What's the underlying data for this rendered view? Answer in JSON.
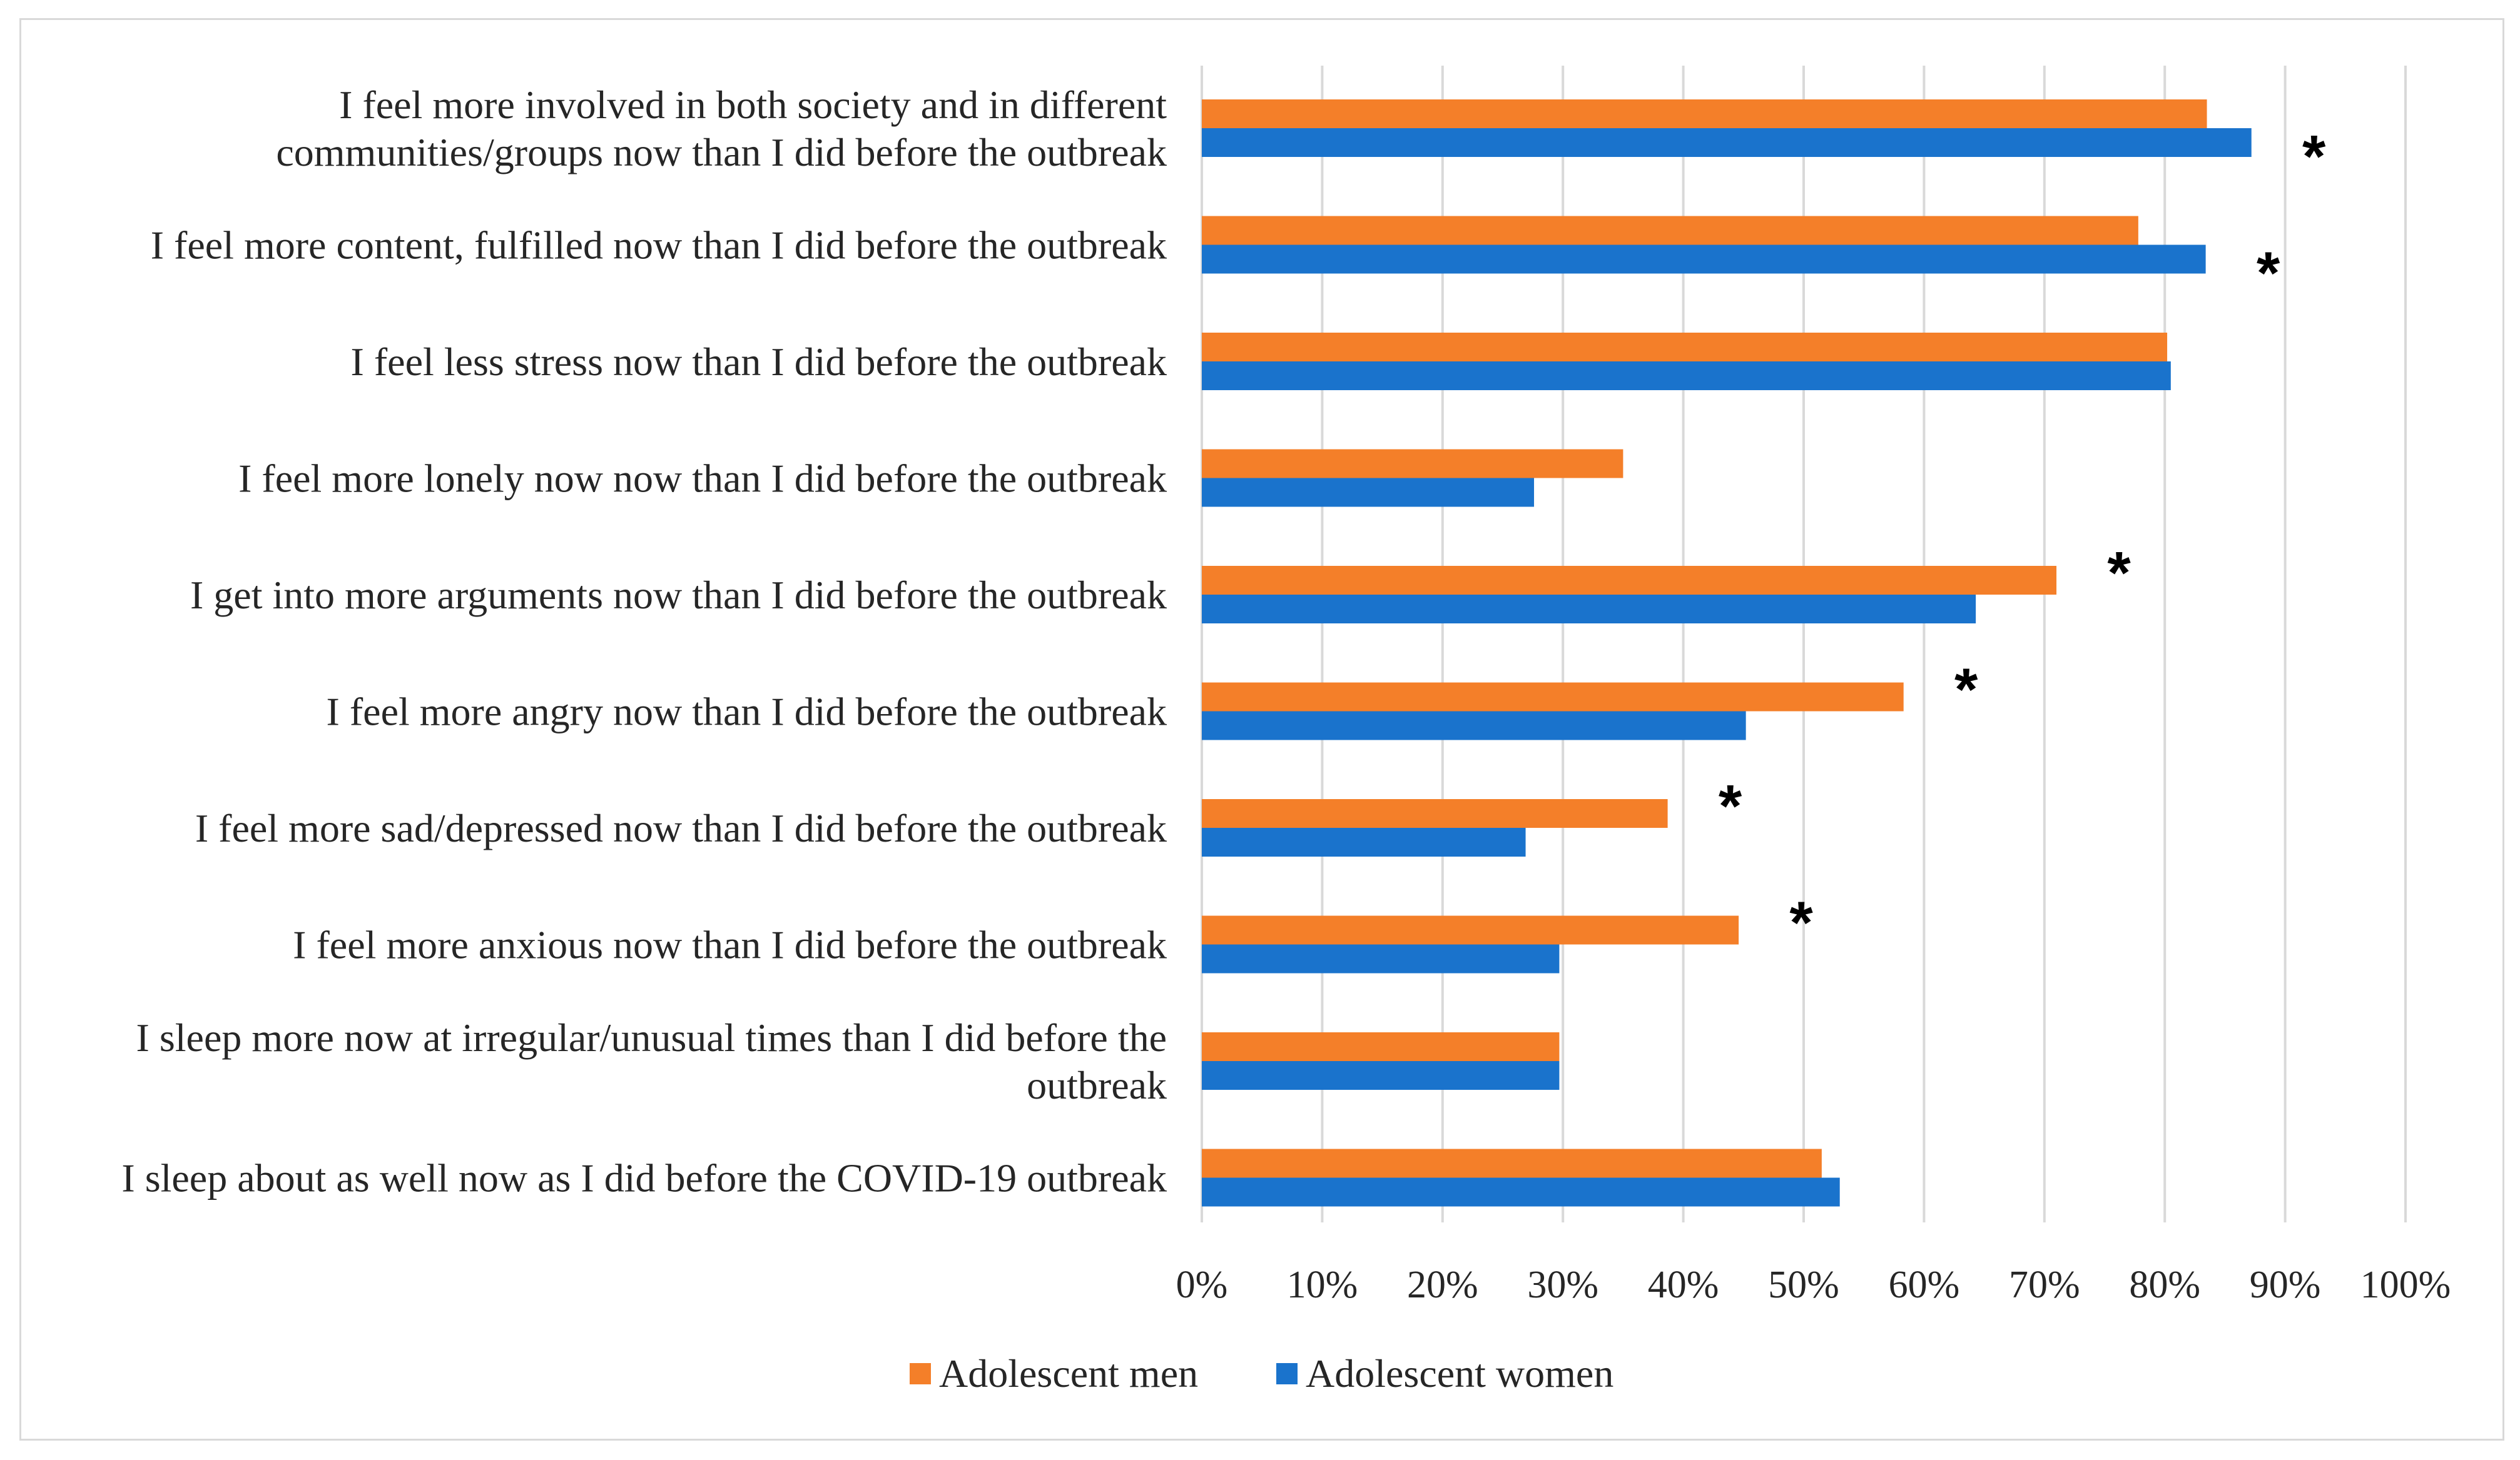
{
  "chart_data": {
    "type": "bar",
    "orientation": "horizontal",
    "title": "",
    "xlabel": "",
    "ylabel": "",
    "xlim": [
      0,
      100
    ],
    "grid": true,
    "legend_position": "bottom",
    "colors": {
      "men": "#f47f29",
      "women": "#1a73cc",
      "grid": "#d9d9d9"
    },
    "ticks": [
      "0%",
      "10%",
      "20%",
      "30%",
      "40%",
      "50%",
      "60%",
      "70%",
      "80%",
      "90%",
      "100%"
    ],
    "categories": [
      [
        "I feel more involved in both society and in different",
        "communities/groups now than I did before the outbreak"
      ],
      [
        "I feel more content, fulfilled now than I did before the outbreak"
      ],
      [
        "I feel less stress now than I did before the outbreak"
      ],
      [
        "I feel more lonely now now than I did before the outbreak"
      ],
      [
        "I get into more arguments now than I did before the outbreak"
      ],
      [
        "I feel more angry now than I did before the outbreak"
      ],
      [
        "I feel more sad/depressed now than I did before the outbreak"
      ],
      [
        "I feel more anxious now than I did before the outbreak"
      ],
      [
        "I sleep more now at irregular/unusual times than I did before the",
        "outbreak"
      ],
      [
        "I sleep about as well now as I did before the COVID-19 outbreak"
      ]
    ],
    "series": [
      {
        "name": "Adolescent men",
        "color": "#f47f29",
        "values": [
          83.5,
          77.8,
          80.2,
          35.0,
          71.0,
          58.3,
          38.7,
          44.6,
          29.7,
          51.5
        ]
      },
      {
        "name": "Adolescent women",
        "color": "#1a73cc",
        "values": [
          87.2,
          83.4,
          80.5,
          27.6,
          64.3,
          45.2,
          26.9,
          29.7,
          29.7,
          53.0
        ]
      }
    ],
    "significance_marker": "*",
    "significant": [
      true,
      true,
      false,
      false,
      true,
      true,
      true,
      true,
      false,
      false
    ]
  }
}
